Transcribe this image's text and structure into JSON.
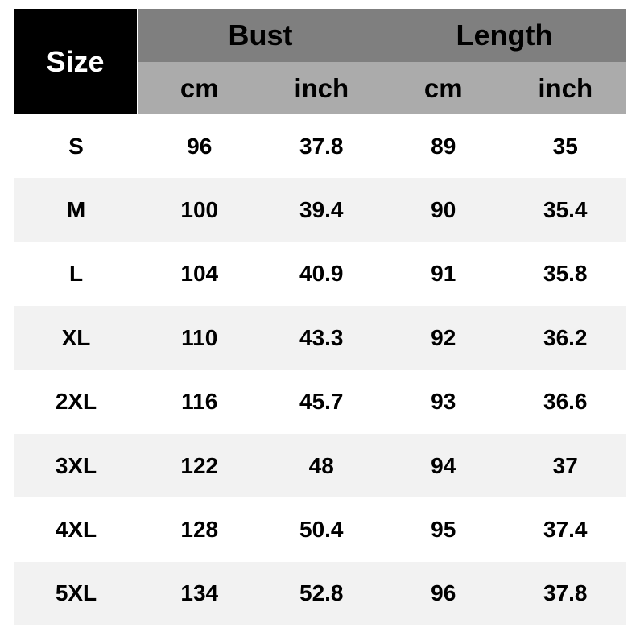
{
  "colors": {
    "size_cell_bg": "#000000",
    "size_cell_text": "#ffffff",
    "group_header_bg": "#7f7f7f",
    "unit_header_bg": "#ababab",
    "row_bg": "#ffffff",
    "row_alt_bg": "#f2f2f2",
    "text": "#000000"
  },
  "table": {
    "corner_label": "Size",
    "groups": [
      {
        "label": "Bust"
      },
      {
        "label": "Length"
      }
    ],
    "unit_headers": [
      "cm",
      "inch",
      "cm",
      "inch"
    ],
    "rows": [
      {
        "size": "S",
        "bust_cm": "96",
        "bust_inch": "37.8",
        "length_cm": "89",
        "length_inch": "35"
      },
      {
        "size": "M",
        "bust_cm": "100",
        "bust_inch": "39.4",
        "length_cm": "90",
        "length_inch": "35.4"
      },
      {
        "size": "L",
        "bust_cm": "104",
        "bust_inch": "40.9",
        "length_cm": "91",
        "length_inch": "35.8"
      },
      {
        "size": "XL",
        "bust_cm": "110",
        "bust_inch": "43.3",
        "length_cm": "92",
        "length_inch": "36.2"
      },
      {
        "size": "2XL",
        "bust_cm": "116",
        "bust_inch": "45.7",
        "length_cm": "93",
        "length_inch": "36.6"
      },
      {
        "size": "3XL",
        "bust_cm": "122",
        "bust_inch": "48",
        "length_cm": "94",
        "length_inch": "37"
      },
      {
        "size": "4XL",
        "bust_cm": "128",
        "bust_inch": "50.4",
        "length_cm": "95",
        "length_inch": "37.4"
      },
      {
        "size": "5XL",
        "bust_cm": "134",
        "bust_inch": "52.8",
        "length_cm": "96",
        "length_inch": "37.8"
      }
    ]
  },
  "chart_data": {
    "type": "table",
    "columns": [
      "Size",
      "Bust (cm)",
      "Bust (inch)",
      "Length (cm)",
      "Length (inch)"
    ],
    "rows": [
      [
        "S",
        96,
        37.8,
        89,
        35
      ],
      [
        "M",
        100,
        39.4,
        90,
        35.4
      ],
      [
        "L",
        104,
        40.9,
        91,
        35.8
      ],
      [
        "XL",
        110,
        43.3,
        92,
        36.2
      ],
      [
        "2XL",
        116,
        45.7,
        93,
        36.6
      ],
      [
        "3XL",
        122,
        48,
        94,
        37
      ],
      [
        "4XL",
        128,
        50.4,
        95,
        37.4
      ],
      [
        "5XL",
        134,
        52.8,
        96,
        37.8
      ]
    ]
  }
}
